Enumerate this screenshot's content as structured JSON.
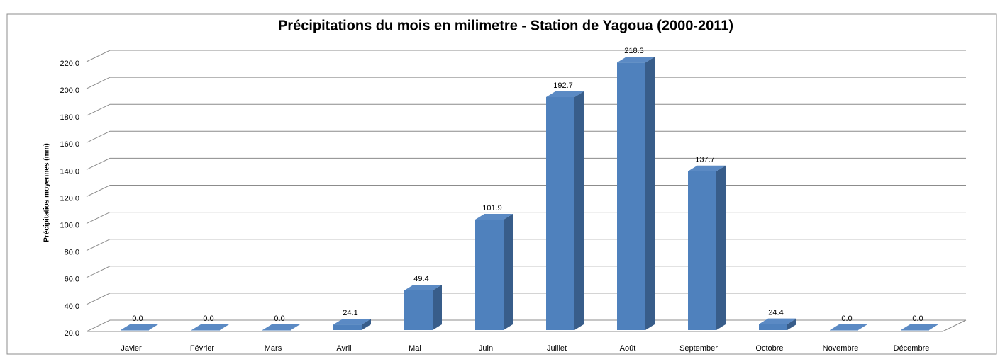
{
  "chart_data": {
    "type": "bar3d",
    "title": "Précipitations du mois en milimetre - Station de Yagoua (2000-2011)",
    "y_axis_label": "Précipitatios  moyennes (mm)",
    "categories": [
      "Javier",
      "Février",
      "Mars",
      "Avril",
      "Mai",
      "Juin",
      "Juillet",
      "Août",
      "September",
      "Octobre",
      "Novembre",
      "Décembre"
    ],
    "values": [
      0,
      0,
      0,
      24.1,
      49.4,
      101.9,
      192.7,
      218.3,
      137.7,
      24.4,
      0,
      0
    ],
    "value_labels": [
      "0.0",
      "0.0",
      "0.0",
      "24.1",
      "49.4",
      "101.9",
      "192.7",
      "218.3",
      "137.7",
      "24.4",
      "0.0",
      "0.0"
    ],
    "color": "#4f81bd",
    "ylim": [
      20,
      220
    ],
    "yticks": [
      {
        "value": 20,
        "label": "20.0"
      },
      {
        "value": 40,
        "label": "40.0"
      },
      {
        "value": 60,
        "label": "60.0"
      },
      {
        "value": 80,
        "label": "80.0"
      },
      {
        "value": 100,
        "label": "100.0"
      },
      {
        "value": 120,
        "label": "120.0"
      },
      {
        "value": 140,
        "label": "140.0"
      },
      {
        "value": 160,
        "label": "160.0"
      },
      {
        "value": 180,
        "label": "180.0"
      },
      {
        "value": 200,
        "label": "200.0"
      },
      {
        "value": 220,
        "label": "220.0"
      }
    ],
    "grid": true
  }
}
